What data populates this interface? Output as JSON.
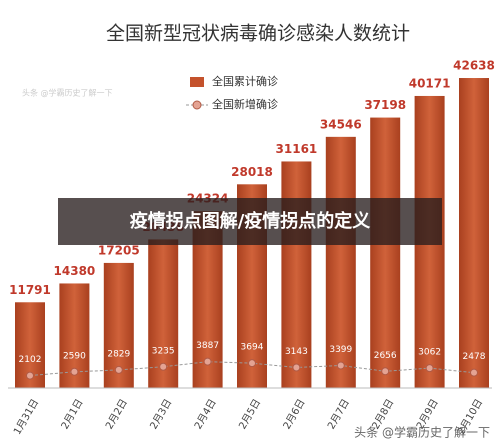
{
  "chart_data": {
    "type": "bar-line",
    "title": "全国新型冠状病毒确诊感染人数统计",
    "categories": [
      "1月31日",
      "2月1日",
      "2月2日",
      "2月3日",
      "2月4日",
      "2月5日",
      "2月6日",
      "2月7日",
      "2月8日",
      "2月9日",
      "2月10日"
    ],
    "series": [
      {
        "name": "全国累计确诊",
        "color": "#c4522c",
        "values": [
          11791,
          14380,
          17205,
          20438,
          24324,
          28018,
          31161,
          34546,
          37198,
          40171,
          42638
        ]
      },
      {
        "name": "全国新增确诊",
        "color": "#d9897a",
        "values": [
          2102,
          2590,
          2829,
          3235,
          3887,
          3694,
          3143,
          3399,
          2656,
          3062,
          2478
        ]
      }
    ]
  },
  "banner": "疫情拐点图解/疫情拐点的定义",
  "watermarks": [
    "头条 @学霸历史了解一下",
    "头条 @学霸历史了解一下"
  ]
}
